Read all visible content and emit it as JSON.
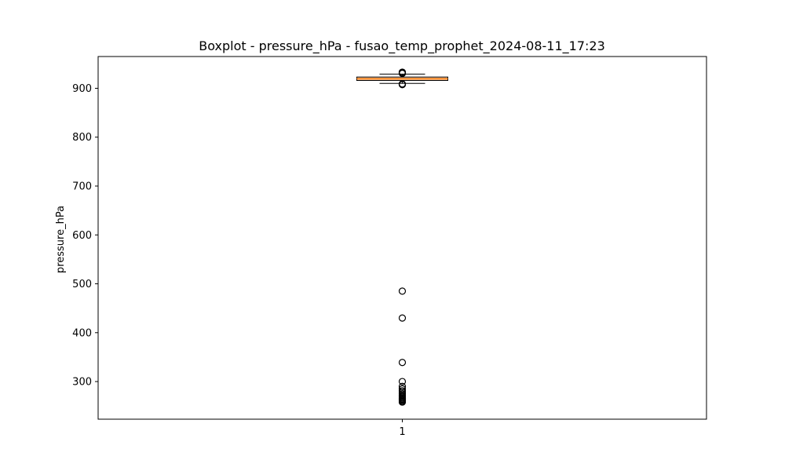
{
  "chart_data": {
    "type": "boxplot",
    "title": "Boxplot - pressure_hPa - fusao_temp_prophet_2024-08-11_17:23",
    "xlabel": "",
    "ylabel": "pressure_hPa",
    "categories": [
      "1"
    ],
    "ylim": [
      223,
      965
    ],
    "yticks": [
      300,
      400,
      500,
      600,
      700,
      800,
      900
    ],
    "grid": false,
    "boxes": [
      {
        "category": "1",
        "whisker_low": 910,
        "q1": 916,
        "median": 919.5,
        "q3": 923,
        "whisker_high": 929,
        "fliers": [
          933,
          932,
          931,
          930.5,
          909,
          908,
          907.5,
          485,
          430,
          339,
          300,
          290,
          285,
          281,
          278,
          275,
          272,
          270,
          268,
          266,
          264,
          262,
          260,
          258
        ]
      }
    ],
    "colors": {
      "box_fill": "#f5c29a",
      "box_edge": "#000000",
      "median": "#ff7f0e"
    }
  }
}
